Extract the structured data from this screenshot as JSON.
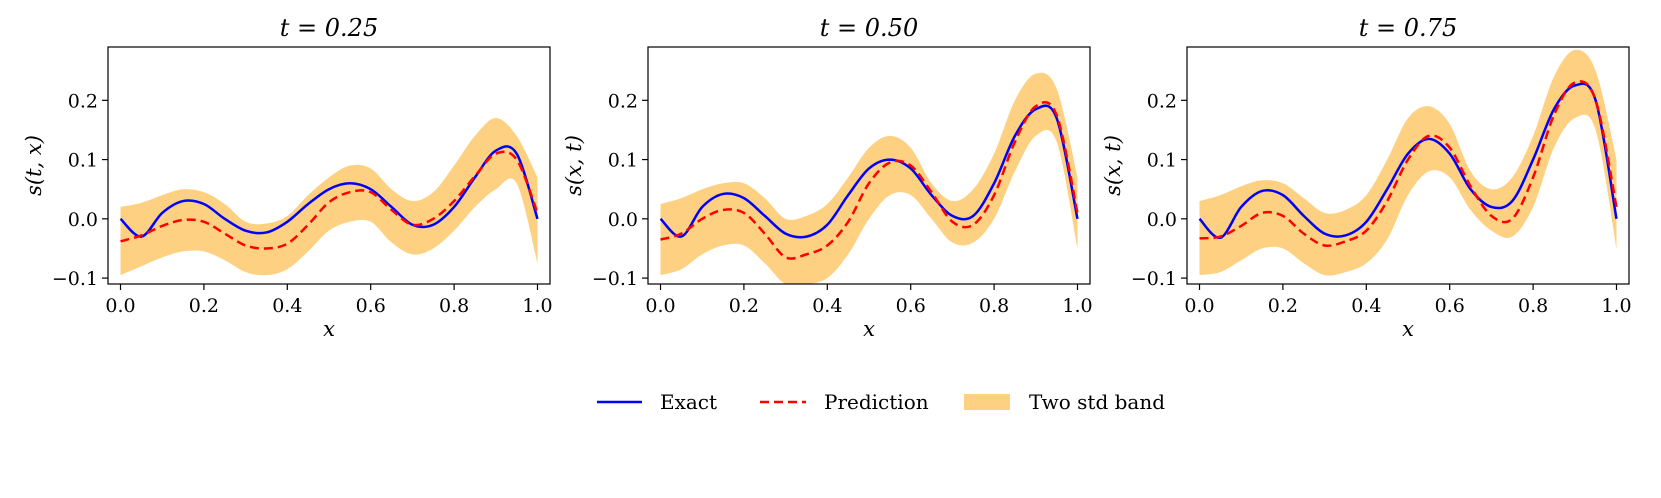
{
  "legend": {
    "exact": "Exact",
    "prediction": "Prediction",
    "band": "Two std band"
  },
  "colors": {
    "exact": "#0000ff",
    "prediction": "#ff0000",
    "band": "#fdd181"
  },
  "chart_data": [
    {
      "type": "line",
      "title": "t = 0.25",
      "xlabel": "x",
      "ylabel": "s(t, x)",
      "xlim": [
        -0.03,
        1.03
      ],
      "ylim": [
        -0.11,
        0.29
      ],
      "xticks": [
        "0.0",
        "0.2",
        "0.4",
        "0.6",
        "0.8",
        "1.0"
      ],
      "yticks": [
        "−0.1",
        "0.0",
        "0.1",
        "0.2"
      ],
      "x": [
        0.0,
        0.05,
        0.1,
        0.15,
        0.2,
        0.25,
        0.3,
        0.35,
        0.4,
        0.45,
        0.5,
        0.55,
        0.6,
        0.65,
        0.7,
        0.75,
        0.8,
        0.85,
        0.9,
        0.95,
        1.0
      ],
      "series": [
        {
          "name": "Exact",
          "values": [
            0.0,
            -0.03,
            0.01,
            0.03,
            0.025,
            0.0,
            -0.02,
            -0.023,
            -0.005,
            0.025,
            0.05,
            0.06,
            0.05,
            0.02,
            -0.01,
            -0.01,
            0.02,
            0.07,
            0.115,
            0.11,
            0.0
          ]
        },
        {
          "name": "Prediction",
          "values": [
            -0.038,
            -0.028,
            -0.012,
            -0.002,
            -0.005,
            -0.025,
            -0.045,
            -0.05,
            -0.042,
            -0.01,
            0.028,
            0.045,
            0.045,
            0.015,
            -0.01,
            0.0,
            0.03,
            0.072,
            0.11,
            0.1,
            0.01
          ]
        },
        {
          "name": "Two std band upper",
          "values": [
            0.02,
            0.027,
            0.04,
            0.05,
            0.045,
            0.025,
            -0.005,
            -0.008,
            0.005,
            0.04,
            0.07,
            0.09,
            0.085,
            0.05,
            0.03,
            0.045,
            0.09,
            0.14,
            0.17,
            0.14,
            0.07
          ]
        },
        {
          "name": "Two std band lower",
          "values": [
            -0.095,
            -0.08,
            -0.065,
            -0.055,
            -0.055,
            -0.07,
            -0.09,
            -0.095,
            -0.085,
            -0.055,
            -0.02,
            -0.005,
            -0.005,
            -0.04,
            -0.06,
            -0.05,
            -0.02,
            0.02,
            0.05,
            0.06,
            -0.075
          ]
        }
      ]
    },
    {
      "type": "line",
      "title": "t = 0.50",
      "xlabel": "x",
      "ylabel": "s(x, t)",
      "xlim": [
        -0.03,
        1.03
      ],
      "ylim": [
        -0.11,
        0.29
      ],
      "xticks": [
        "0.0",
        "0.2",
        "0.4",
        "0.6",
        "0.8",
        "1.0"
      ],
      "yticks": [
        "−0.1",
        "0.0",
        "0.1",
        "0.2"
      ],
      "x": [
        0.0,
        0.05,
        0.1,
        0.15,
        0.2,
        0.25,
        0.3,
        0.35,
        0.4,
        0.45,
        0.5,
        0.55,
        0.6,
        0.65,
        0.7,
        0.75,
        0.8,
        0.85,
        0.9,
        0.95,
        1.0
      ],
      "series": [
        {
          "name": "Exact",
          "values": [
            0.0,
            -0.03,
            0.02,
            0.042,
            0.035,
            0.005,
            -0.025,
            -0.03,
            -0.01,
            0.04,
            0.085,
            0.1,
            0.085,
            0.04,
            0.005,
            0.005,
            0.06,
            0.14,
            0.185,
            0.17,
            0.0
          ]
        },
        {
          "name": "Prediction",
          "values": [
            -0.035,
            -0.025,
            0.0,
            0.015,
            0.01,
            -0.025,
            -0.065,
            -0.06,
            -0.045,
            -0.005,
            0.06,
            0.095,
            0.09,
            0.045,
            -0.005,
            -0.01,
            0.04,
            0.13,
            0.19,
            0.175,
            0.01
          ]
        },
        {
          "name": "Two std band upper",
          "values": [
            0.025,
            0.035,
            0.05,
            0.06,
            0.06,
            0.035,
            0.0,
            0.005,
            0.025,
            0.07,
            0.12,
            0.14,
            0.12,
            0.06,
            0.03,
            0.05,
            0.11,
            0.2,
            0.245,
            0.22,
            0.07
          ]
        },
        {
          "name": "Two std band lower",
          "values": [
            -0.095,
            -0.085,
            -0.06,
            -0.045,
            -0.045,
            -0.075,
            -0.11,
            -0.11,
            -0.1,
            -0.06,
            0.0,
            0.04,
            0.04,
            0.0,
            -0.04,
            -0.04,
            0.0,
            0.08,
            0.14,
            0.13,
            -0.05
          ]
        }
      ]
    },
    {
      "type": "line",
      "title": "t = 0.75",
      "xlabel": "x",
      "ylabel": "s(x, t)",
      "xlim": [
        -0.03,
        1.03
      ],
      "ylim": [
        -0.11,
        0.29
      ],
      "xticks": [
        "0.0",
        "0.2",
        "0.4",
        "0.6",
        "0.8",
        "1.0"
      ],
      "yticks": [
        "−0.1",
        "0.0",
        "0.1",
        "0.2"
      ],
      "x": [
        0.0,
        0.05,
        0.1,
        0.15,
        0.2,
        0.25,
        0.3,
        0.35,
        0.4,
        0.45,
        0.5,
        0.55,
        0.6,
        0.65,
        0.7,
        0.75,
        0.8,
        0.85,
        0.9,
        0.95,
        1.0
      ],
      "series": [
        {
          "name": "Exact",
          "values": [
            0.0,
            -0.032,
            0.02,
            0.047,
            0.04,
            0.005,
            -0.025,
            -0.028,
            -0.005,
            0.05,
            0.11,
            0.135,
            0.11,
            0.05,
            0.02,
            0.03,
            0.1,
            0.185,
            0.225,
            0.2,
            0.0
          ]
        },
        {
          "name": "Prediction",
          "values": [
            -0.033,
            -0.03,
            -0.012,
            0.01,
            0.005,
            -0.025,
            -0.045,
            -0.038,
            -0.02,
            0.03,
            0.1,
            0.14,
            0.12,
            0.055,
            0.005,
            0.0,
            0.07,
            0.175,
            0.23,
            0.2,
            0.02
          ]
        },
        {
          "name": "Two std band upper",
          "values": [
            0.03,
            0.04,
            0.055,
            0.065,
            0.06,
            0.035,
            0.01,
            0.015,
            0.04,
            0.1,
            0.17,
            0.19,
            0.16,
            0.08,
            0.05,
            0.07,
            0.14,
            0.24,
            0.285,
            0.25,
            0.1
          ]
        },
        {
          "name": "Two std band lower",
          "values": [
            -0.095,
            -0.09,
            -0.07,
            -0.05,
            -0.05,
            -0.075,
            -0.095,
            -0.09,
            -0.075,
            -0.035,
            0.04,
            0.08,
            0.07,
            0.015,
            -0.02,
            -0.03,
            0.02,
            0.12,
            0.17,
            0.15,
            -0.05
          ]
        }
      ]
    }
  ]
}
